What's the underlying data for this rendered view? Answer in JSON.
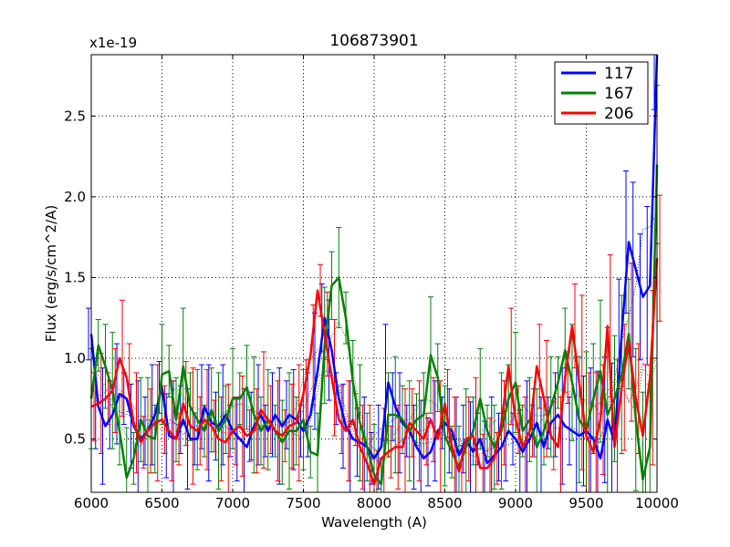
{
  "chart_data": {
    "type": "line",
    "title": "106873901",
    "xlabel": "Wavelength (A)",
    "ylabel": "Flux (erg/s/cm^2/A)",
    "offset_label": "x1e-19",
    "xlim": [
      6000,
      10000
    ],
    "ylim": [
      0.17,
      2.88
    ],
    "xticks": [
      6000,
      6500,
      7000,
      7500,
      8000,
      8500,
      9000,
      9500,
      10000
    ],
    "yticks": [
      0.5,
      1.0,
      1.5,
      2.0,
      2.5
    ],
    "xtick_labels": [
      "6000",
      "6500",
      "7000",
      "7500",
      "8000",
      "8500",
      "9000",
      "9500",
      "10000"
    ],
    "ytick_labels": [
      "0.5",
      "1.0",
      "1.5",
      "2.0",
      "2.5"
    ],
    "grid": true,
    "legend_position": "top-right",
    "x": [
      6000,
      6050,
      6100,
      6150,
      6200,
      6250,
      6300,
      6350,
      6400,
      6450,
      6500,
      6550,
      6600,
      6650,
      6700,
      6750,
      6800,
      6850,
      6900,
      6950,
      7000,
      7050,
      7100,
      7150,
      7200,
      7250,
      7300,
      7350,
      7400,
      7450,
      7500,
      7550,
      7600,
      7650,
      7700,
      7750,
      7800,
      7850,
      7900,
      7950,
      8000,
      8050,
      8100,
      8150,
      8200,
      8250,
      8300,
      8350,
      8400,
      8450,
      8500,
      8550,
      8600,
      8650,
      8700,
      8750,
      8800,
      8850,
      8900,
      8950,
      9000,
      9050,
      9100,
      9150,
      9200,
      9250,
      9300,
      9350,
      9400,
      9450,
      9500,
      9550,
      9600,
      9650,
      9700,
      9750,
      9800,
      9850,
      9900,
      9950,
      10000
    ],
    "series": [
      {
        "name": "117",
        "color": "#0000ff",
        "values": [
          1.15,
          0.7,
          0.58,
          0.65,
          0.78,
          0.75,
          0.58,
          0.5,
          0.55,
          0.65,
          0.82,
          0.52,
          0.5,
          0.62,
          0.5,
          0.5,
          0.7,
          0.6,
          0.58,
          0.65,
          0.55,
          0.5,
          0.45,
          0.58,
          0.65,
          0.55,
          0.65,
          0.58,
          0.65,
          0.62,
          0.55,
          0.65,
          0.92,
          1.25,
          1.05,
          0.75,
          0.58,
          0.5,
          0.48,
          0.45,
          0.38,
          0.45,
          0.85,
          0.7,
          0.6,
          0.55,
          0.45,
          0.38,
          0.42,
          0.55,
          0.6,
          0.55,
          0.4,
          0.5,
          0.42,
          0.5,
          0.35,
          0.4,
          0.45,
          0.55,
          0.5,
          0.42,
          0.5,
          0.6,
          0.45,
          0.6,
          0.65,
          0.58,
          0.55,
          0.52,
          0.55,
          0.5,
          0.38,
          0.62,
          0.48,
          1.15,
          1.72,
          1.55,
          1.38,
          1.45,
          2.88
        ]
      },
      {
        "name": "167",
        "color": "#008000",
        "values": [
          0.75,
          1.08,
          0.95,
          0.8,
          0.55,
          0.26,
          0.38,
          0.62,
          0.52,
          0.5,
          0.9,
          0.92,
          0.62,
          0.95,
          0.7,
          0.62,
          0.55,
          0.68,
          0.55,
          0.62,
          0.75,
          0.75,
          0.82,
          0.65,
          0.55,
          0.62,
          0.55,
          0.48,
          0.55,
          0.55,
          0.62,
          0.42,
          0.4,
          1.08,
          1.45,
          1.5,
          1.25,
          0.85,
          0.6,
          0.45,
          0.28,
          0.22,
          0.65,
          0.65,
          0.62,
          0.55,
          0.62,
          0.65,
          1.02,
          0.88,
          0.52,
          0.42,
          0.32,
          0.45,
          0.55,
          0.75,
          0.55,
          0.45,
          0.55,
          0.75,
          0.85,
          0.55,
          0.62,
          0.45,
          0.55,
          0.7,
          0.85,
          1.05,
          0.85,
          0.62,
          0.55,
          0.75,
          0.92,
          0.65,
          0.75,
          0.9,
          1.15,
          0.62,
          0.25,
          0.45,
          2.2
        ]
      },
      {
        "name": "206",
        "color": "#ff0000",
        "values": [
          0.7,
          0.72,
          0.75,
          0.8,
          1.0,
          0.88,
          0.6,
          0.48,
          0.55,
          0.6,
          0.62,
          0.55,
          0.5,
          0.72,
          0.58,
          0.55,
          0.62,
          0.58,
          0.5,
          0.48,
          0.55,
          0.58,
          0.52,
          0.55,
          0.68,
          0.62,
          0.55,
          0.52,
          0.58,
          0.6,
          0.78,
          1.02,
          1.42,
          1.15,
          0.88,
          0.62,
          0.55,
          0.62,
          0.45,
          0.35,
          0.22,
          0.38,
          0.42,
          0.45,
          0.45,
          0.6,
          0.55,
          0.5,
          0.62,
          0.5,
          0.72,
          0.45,
          0.3,
          0.5,
          0.52,
          0.32,
          0.32,
          0.38,
          0.6,
          0.95,
          0.62,
          0.45,
          0.55,
          0.95,
          0.75,
          0.52,
          0.45,
          0.88,
          1.2,
          0.85,
          0.52,
          0.42,
          0.62,
          1.2,
          0.45,
          0.82,
          1.1,
          0.75,
          0.52,
          0.88,
          1.62
        ]
      }
    ]
  }
}
